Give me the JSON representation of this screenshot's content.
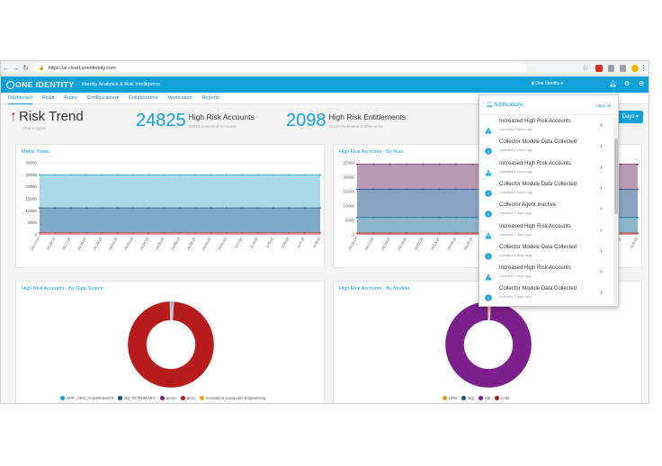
{
  "browser": {
    "url": "https://ai.cloud.oneidentity.com"
  },
  "app": {
    "logo": "ONE IDENTITY",
    "title": "Identity Analytics & Risk Intelligence",
    "tenant": "One Identity"
  },
  "nav": [
    "Dashboard",
    "Risk",
    "Rules",
    "Configuration",
    "Collaborators",
    "Verification",
    "Reports"
  ],
  "header": {
    "title": "Risk Trend",
    "subtitle": "Risk Insights",
    "days_button": "Days"
  },
  "kpis": [
    {
      "value": "24825",
      "label": "High Risk Accounts",
      "sub": "29615 Evaluated Accounts"
    },
    {
      "value": "2098",
      "label": "High Risk Entitlements",
      "sub": "15194 Evaluated Entitlements"
    }
  ],
  "panels": {
    "metric": "Metric Totals",
    "byrule": "High Risk Accounts - By Rule",
    "bysource": "High Risk Accounts - By Data Source",
    "bymodule": "High Risk Accounts - By Module"
  },
  "legend_source": [
    "APP_ARS_ActiveRoles70",
    "SQ-73 PRIMARY",
    "acme",
    "prod",
    "Innovative Computer Engineering"
  ],
  "legend_module": [
    "ARS",
    "SQ",
    "AD",
    "AAD"
  ],
  "notifications": {
    "title": "Notifications",
    "clear": "Clear all",
    "items": [
      {
        "title": "Increased High Risk Accounts",
        "time": "Updated 4 hours ago",
        "type": "warning"
      },
      {
        "title": "Collector Module Data Collected",
        "time": "Updated 4 hours ago",
        "type": "info"
      },
      {
        "title": "Increased High Risk Accounts",
        "time": "Updated 4 hours ago",
        "type": "warning"
      },
      {
        "title": "Collector Module Data Collected",
        "time": "Updated 4 hours ago",
        "type": "info"
      },
      {
        "title": "Collector Agent Inactive",
        "time": "Updated 2 days ago",
        "type": "info"
      },
      {
        "title": "Increased High Risk Accounts",
        "time": "Updated 2 days ago",
        "type": "warning"
      },
      {
        "title": "Collector Module Data Collected",
        "time": "Updated 2 days ago",
        "type": "info"
      },
      {
        "title": "Increased High Risk Accounts",
        "time": "Updated 2 days ago",
        "type": "warning"
      },
      {
        "title": "Collector Module Data Collected",
        "time": "Updated 2 days ago",
        "type": "info"
      }
    ]
  },
  "chart_data": [
    {
      "type": "area",
      "title": "Metric Totals",
      "x": [
        "10/17/18",
        "10/18/18",
        "10/17/18",
        "10/18/18",
        "10/19/18",
        "10/22/18",
        "10/23/18",
        "10/24/18",
        "10/25/18",
        "10/26/18",
        "10/29/18",
        "10/30/18",
        "10/31/18",
        "11/1/18",
        "11/2/18",
        "11/5/18",
        "11/6/18",
        "11/7/18",
        "11/8/18"
      ],
      "ylim": [
        0,
        30000
      ],
      "yticks": [
        0,
        5000,
        10000,
        15000,
        20000,
        25000,
        30000
      ],
      "series": [
        {
          "values": [
            25000,
            25000,
            25000,
            25000,
            25000,
            25000,
            25000,
            25000,
            25000,
            25000,
            25000,
            25000,
            25000,
            25000,
            25000,
            25000,
            25000,
            25000,
            25000
          ]
        },
        {
          "values": [
            11200,
            11200,
            11200,
            11200,
            11200,
            11200,
            11200,
            11200,
            11200,
            11200,
            11200,
            11200,
            11200,
            11200,
            11200,
            11200,
            11200,
            11200,
            11200
          ]
        },
        {
          "values": [
            800,
            800,
            800,
            800,
            800,
            800,
            800,
            800,
            800,
            800,
            800,
            800,
            800,
            800,
            800,
            800,
            800,
            800,
            800
          ]
        }
      ]
    },
    {
      "type": "area",
      "title": "High Risk Accounts - By Rule",
      "x": [
        "10/16/18",
        "10/17/18",
        "10/18/18",
        "10/19/18",
        "10/22/18",
        "10/23/18",
        "10/24/18",
        "10/25/18",
        "10/26/18",
        "10/29/18",
        "10/30/18",
        "10/31/18",
        "11/1/18",
        "11/2/18",
        "11/5/18",
        "11/6/18",
        "11/7/18",
        "11/8/18"
      ],
      "ylim": [
        0,
        25000
      ],
      "yticks": [
        0,
        5000,
        10000,
        15000,
        20000,
        25000
      ],
      "series": [
        {
          "values": [
            24500,
            24500,
            24500,
            24500,
            24500,
            24500,
            24500,
            24500,
            24500,
            24500,
            24500,
            24500,
            24500,
            24500,
            24500,
            24500,
            24500,
            24500
          ]
        },
        {
          "values": [
            15800,
            15800,
            15800,
            15800,
            15800,
            15800,
            15800,
            15800,
            15800,
            15800,
            15800,
            15800,
            15800,
            15800,
            15800,
            15800,
            15800,
            15800
          ]
        },
        {
          "values": [
            6000,
            6000,
            6000,
            6000,
            6000,
            6000,
            6000,
            6000,
            6000,
            6000,
            6000,
            6000,
            6000,
            6000,
            6000,
            6000,
            6000,
            6000
          ]
        },
        {
          "values": [
            600,
            600,
            600,
            600,
            600,
            600,
            600,
            600,
            600,
            600,
            600,
            600,
            600,
            600,
            600,
            600,
            600,
            600
          ]
        }
      ]
    },
    {
      "type": "pie",
      "title": "High Risk Accounts - By Data Source",
      "categories": [
        "APP_ARS_ActiveRoles70",
        "SQ-73 PRIMARY",
        "acme",
        "prod",
        "Innovative Computer Engineering"
      ],
      "values": [
        0.5,
        0.3,
        0.3,
        98.6,
        0.3
      ]
    },
    {
      "type": "pie",
      "title": "High Risk Accounts - By Module",
      "categories": [
        "ARS",
        "SQ",
        "AD",
        "AAD"
      ],
      "values": [
        0.6,
        0.3,
        99.0,
        0.1
      ]
    }
  ],
  "colors": {
    "accent": "#11a0d8",
    "warning": "#11a0d8",
    "red": "#b71c1c",
    "purple": "#7b1f8a"
  }
}
